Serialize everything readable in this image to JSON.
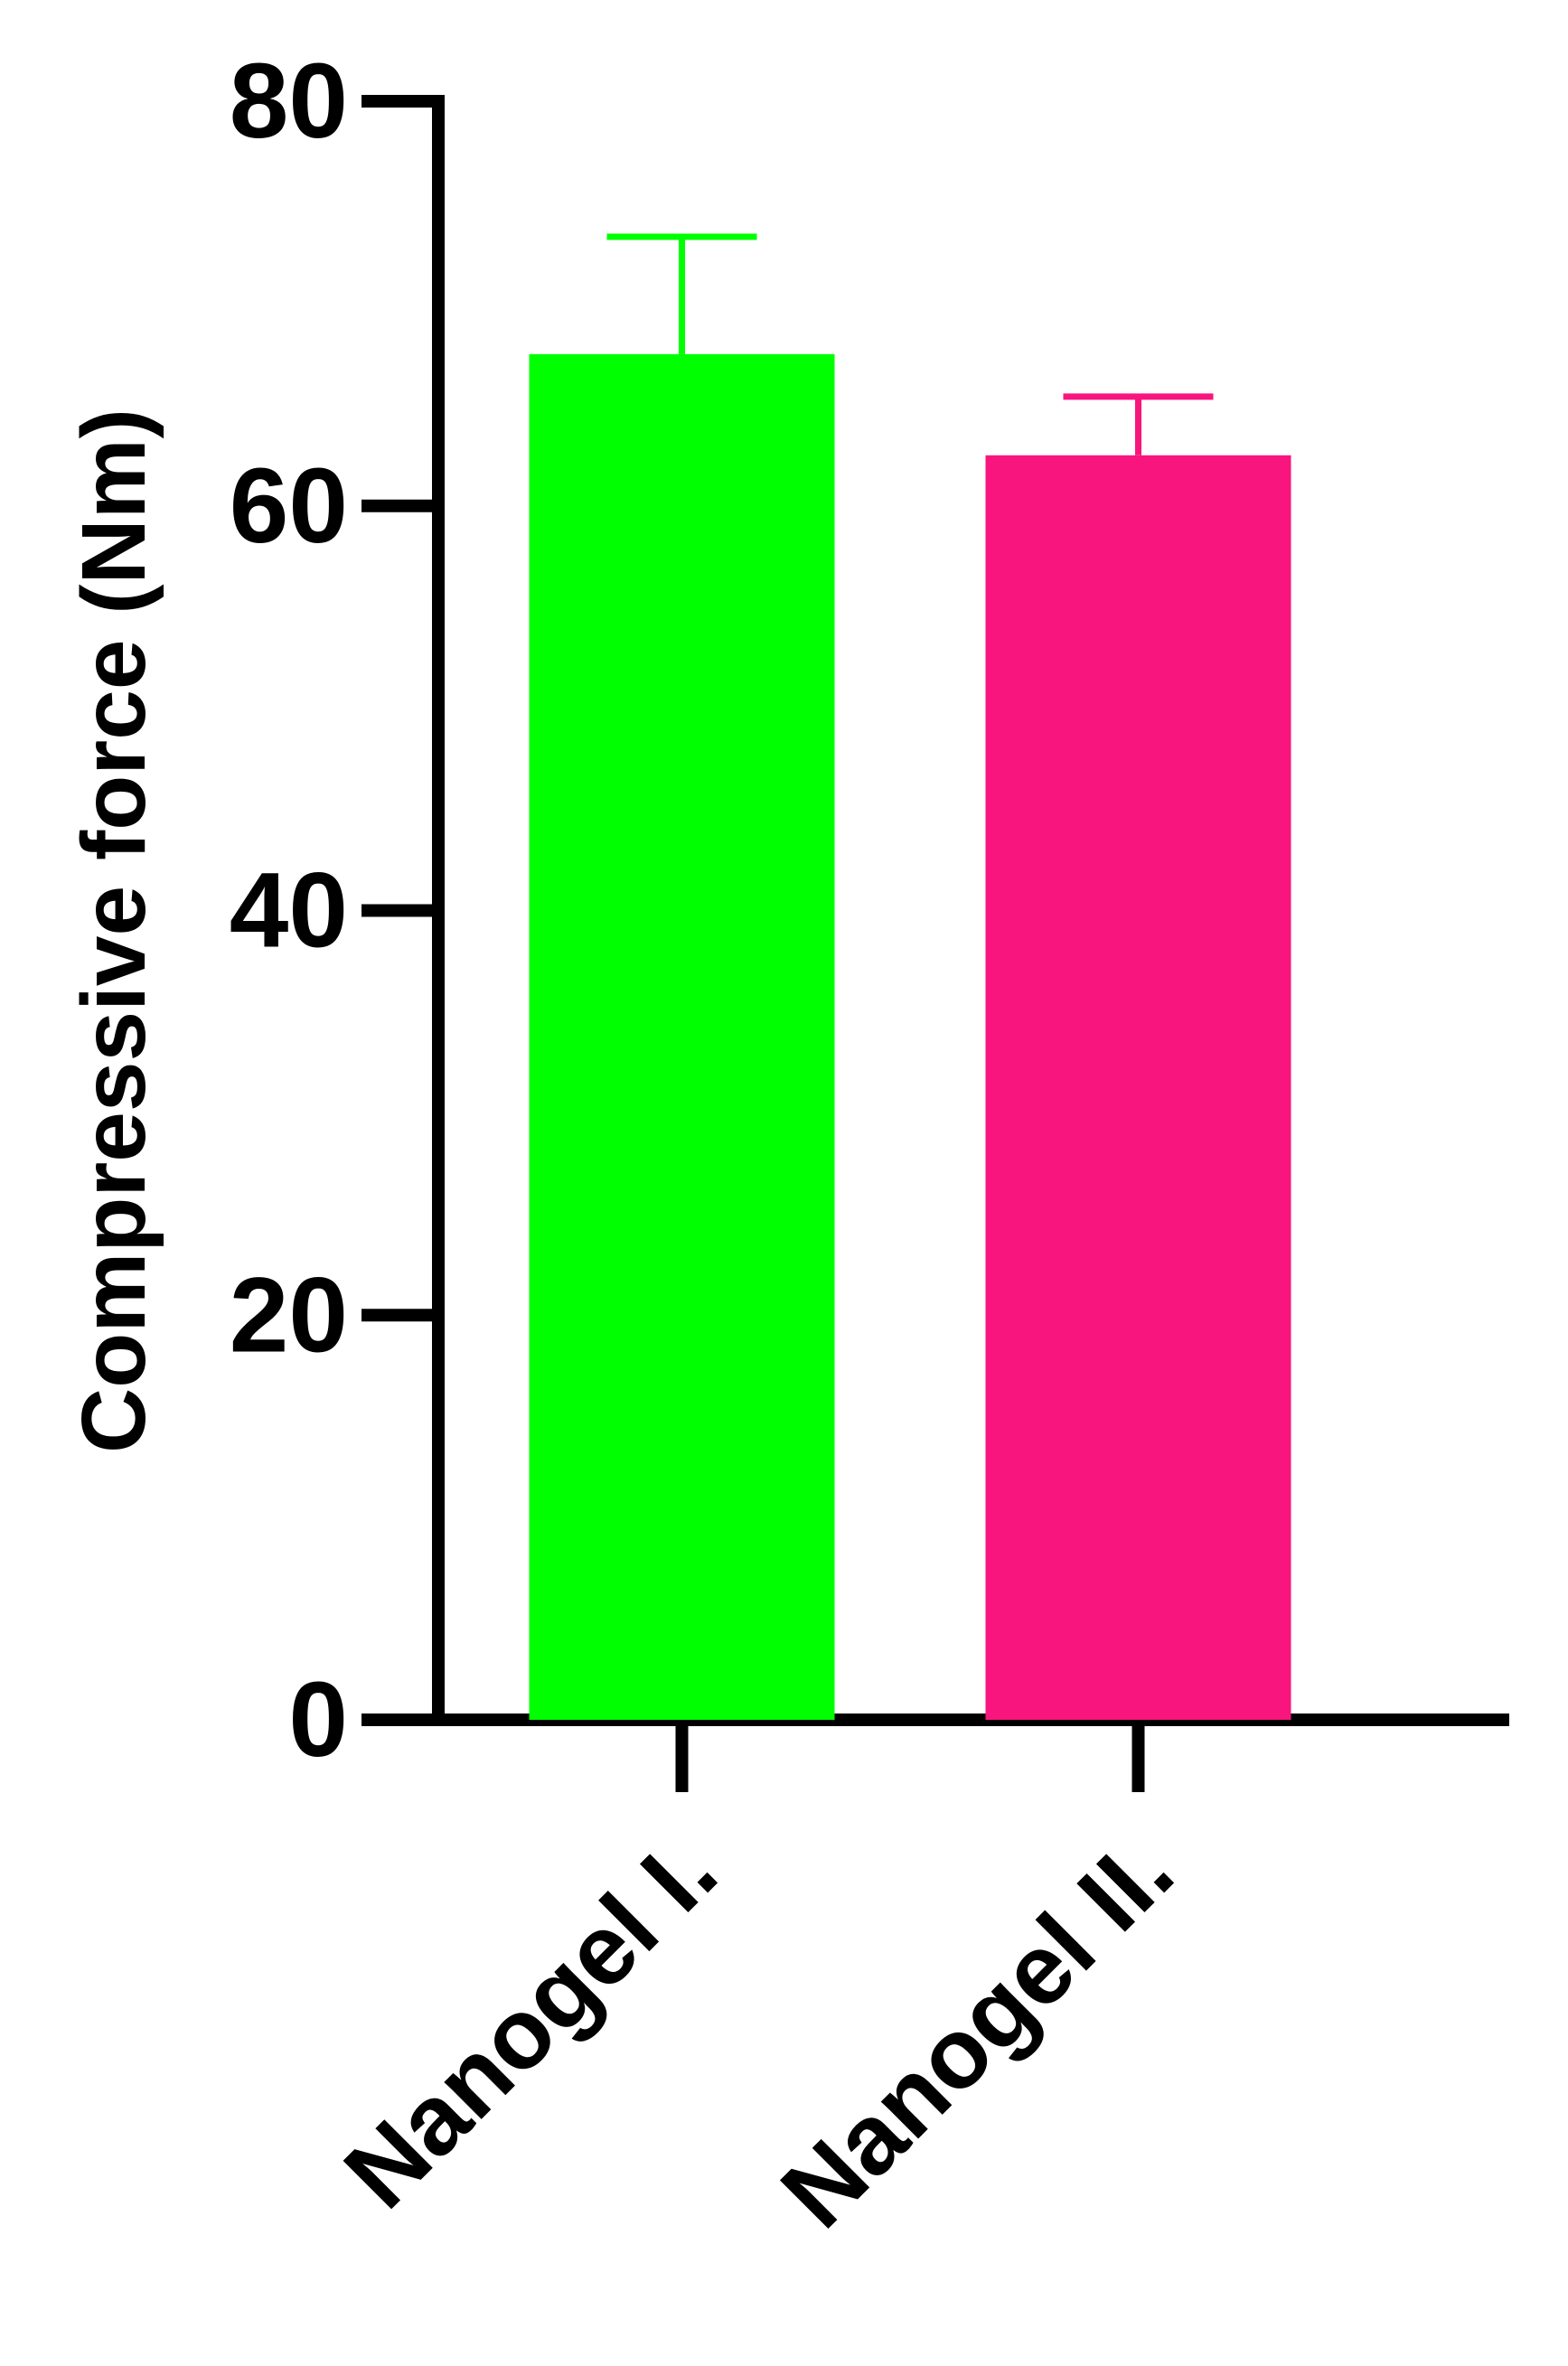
{
  "chart_data": {
    "type": "bar",
    "title": "",
    "xlabel": "",
    "ylabel": "Compressive force (Nm)",
    "ylim": [
      0,
      80
    ],
    "yticks": [
      0,
      20,
      40,
      60,
      80
    ],
    "ytick_labels": [
      "0",
      "20",
      "40",
      "60",
      "80"
    ],
    "grid": false,
    "legend": "none",
    "categories": [
      "Nanogel I.",
      "Nanogel II."
    ],
    "values": [
      67.5,
      62.5
    ],
    "error_upper": [
      73.3,
      65.4
    ],
    "colors": [
      "#00ff00",
      "#f8157e"
    ]
  }
}
